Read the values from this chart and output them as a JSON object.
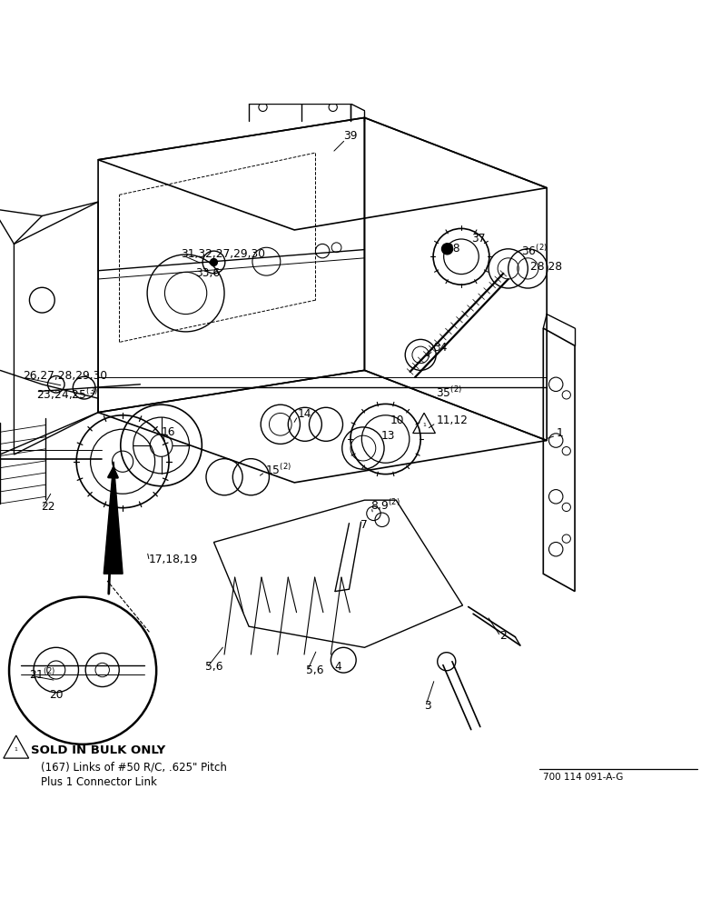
{
  "bg_color": "#ffffff",
  "doc_number": "700 114 091-A-G",
  "footnote_title": "SOLD IN BULK ONLY",
  "footnote_line1": "(167) Links of #50 R/C, .625\" Pitch",
  "footnote_line2": "Plus 1 Connector Link",
  "figsize": [
    7.72,
    10.0
  ],
  "dpi": 100
}
